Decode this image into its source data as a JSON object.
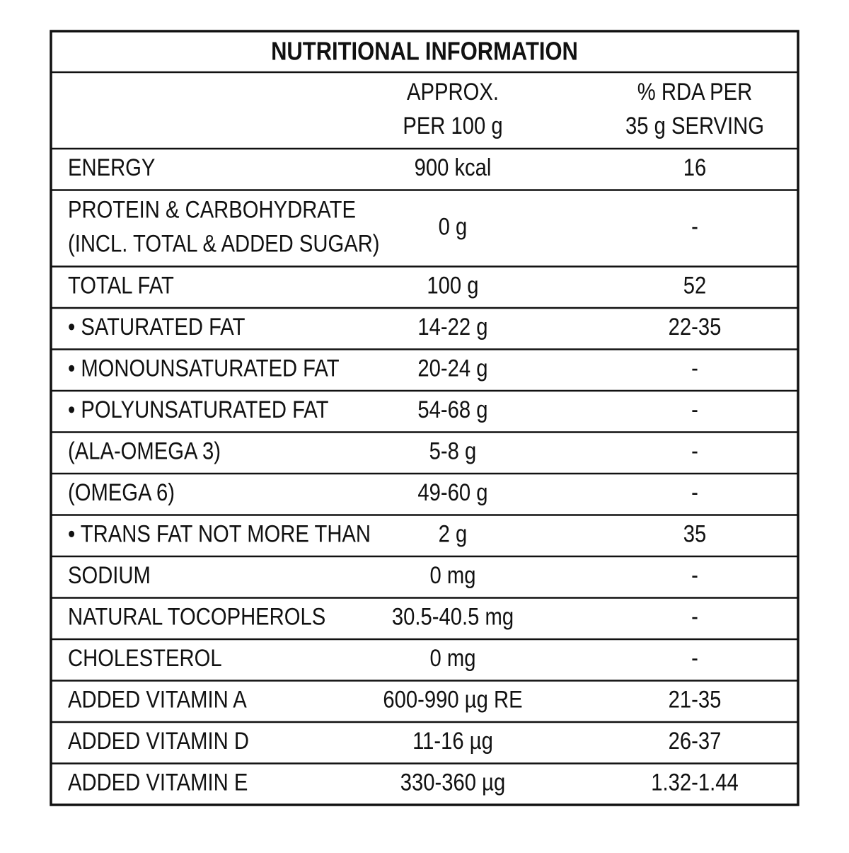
{
  "title": "NUTRITIONAL INFORMATION",
  "header": {
    "per100g": [
      "APPROX.",
      "PER 100 g"
    ],
    "rda": [
      "% RDA PER",
      "35 g SERVING"
    ]
  },
  "rows": [
    {
      "label": [
        "ENERGY"
      ],
      "per100g": "900 kcal",
      "rda": "16"
    },
    {
      "label": [
        "PROTEIN & CARBOHYDRATE",
        "(INCL. TOTAL & ADDED SUGAR)"
      ],
      "per100g": "0 g",
      "rda": "-"
    },
    {
      "label": [
        "TOTAL FAT"
      ],
      "per100g": "100 g",
      "rda": "52"
    },
    {
      "label": [
        "• SATURATED FAT"
      ],
      "per100g": "14-22 g",
      "rda": "22-35"
    },
    {
      "label": [
        "• MONOUNSATURATED FAT"
      ],
      "per100g": "20-24 g",
      "rda": "-"
    },
    {
      "label": [
        "• POLYUNSATURATED FAT"
      ],
      "per100g": "54-68 g",
      "rda": "-"
    },
    {
      "label": [
        "(ALA-OMEGA 3)"
      ],
      "per100g": "5-8 g",
      "rda": "-"
    },
    {
      "label": [
        "(OMEGA 6)"
      ],
      "per100g": "49-60 g",
      "rda": "-"
    },
    {
      "label": [
        "• TRANS FAT NOT MORE THAN"
      ],
      "per100g": "2 g",
      "rda": "35"
    },
    {
      "label": [
        "SODIUM"
      ],
      "per100g": "0 mg",
      "rda": "-"
    },
    {
      "label": [
        "NATURAL TOCOPHEROLS"
      ],
      "per100g": "30.5-40.5 mg",
      "rda": "-"
    },
    {
      "label": [
        "CHOLESTEROL"
      ],
      "per100g": "0 mg",
      "rda": "-"
    },
    {
      "label": [
        "ADDED VITAMIN A"
      ],
      "per100g": "600-990 µg RE",
      "rda": "21-35"
    },
    {
      "label": [
        "ADDED VITAMIN D"
      ],
      "per100g": "11-16 µg",
      "rda": "26-37"
    },
    {
      "label": [
        "ADDED VITAMIN E"
      ],
      "per100g": "330-360 µg",
      "rda": "1.32-1.44"
    }
  ]
}
